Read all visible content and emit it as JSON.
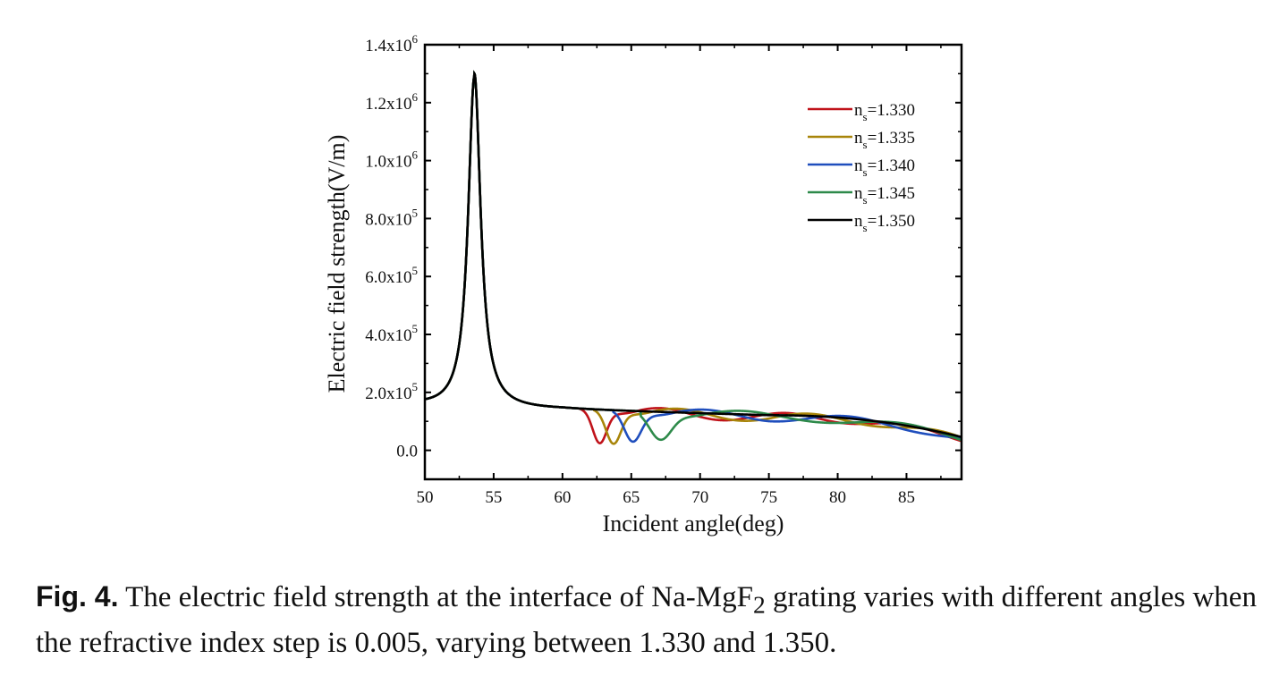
{
  "chart_data": {
    "type": "line",
    "title": "",
    "xlabel": "Incident angle(deg)",
    "ylabel": "Electric field strength(V/m)",
    "xlim": [
      50,
      89
    ],
    "ylim": [
      -100000,
      1400000
    ],
    "xticks": [
      50,
      55,
      60,
      65,
      70,
      75,
      80,
      85
    ],
    "xtick_labels": [
      "50",
      "55",
      "60",
      "65",
      "70",
      "75",
      "80",
      "85"
    ],
    "yticks": [
      0,
      200000,
      400000,
      600000,
      800000,
      1000000,
      1200000,
      1400000
    ],
    "ytick_labels": [
      {
        "mantissa": "0.0",
        "exp": ""
      },
      {
        "mantissa": "2.0x10",
        "exp": "5"
      },
      {
        "mantissa": "4.0x10",
        "exp": "5"
      },
      {
        "mantissa": "6.0x10",
        "exp": "5"
      },
      {
        "mantissa": "8.0x10",
        "exp": "5"
      },
      {
        "mantissa": "1.0x10",
        "exp": "6"
      },
      {
        "mantissa": "1.2x10",
        "exp": "6"
      },
      {
        "mantissa": "1.4x10",
        "exp": "6"
      }
    ],
    "grid": false,
    "legend_position": "top-right",
    "shared_peak": {
      "center": 53.6,
      "height": 1290000,
      "base": 130000
    },
    "series": [
      {
        "name": "n=1.330",
        "label_base": "n",
        "label_sub": "s",
        "label_rest": "=1.330",
        "color": "#c0121a",
        "dip": {
          "center": 62.7,
          "depth": 110000,
          "width": 0.7
        },
        "osc": {
          "period": 9.0,
          "phase": 0.0
        }
      },
      {
        "name": "n=1.335",
        "label_base": "n",
        "label_sub": "s",
        "label_rest": "=1.335",
        "color": "#a8850a",
        "dip": {
          "center": 63.7,
          "depth": 110000,
          "width": 0.75
        },
        "osc": {
          "period": 9.5,
          "phase": 1.2
        }
      },
      {
        "name": "n=1.340",
        "label_base": "n",
        "label_sub": "s",
        "label_rest": "=1.340",
        "color": "#1f4ebd",
        "dip": {
          "center": 65.1,
          "depth": 100000,
          "width": 0.85
        },
        "osc": {
          "period": 10.5,
          "phase": 2.4
        }
      },
      {
        "name": "n=1.345",
        "label_base": "n",
        "label_sub": "s",
        "label_rest": "=1.345",
        "color": "#2e8a4a",
        "dip": {
          "center": 67.1,
          "depth": 90000,
          "width": 1.1
        },
        "osc": {
          "period": 12.0,
          "phase": 3.6
        }
      },
      {
        "name": "n=1.350",
        "label_base": "n",
        "label_sub": "s",
        "label_rest": "=1.350",
        "color": "#000000",
        "dip": null,
        "osc": null
      }
    ]
  },
  "caption": {
    "label": "Fig. 4.",
    "text_before_sub": " The electric field strength at the interface of Na-MgF",
    "sub": "2",
    "text_after_sub": " grating varies with different angles when the refractive index step is 0.005, varying between 1.330 and 1.350."
  }
}
